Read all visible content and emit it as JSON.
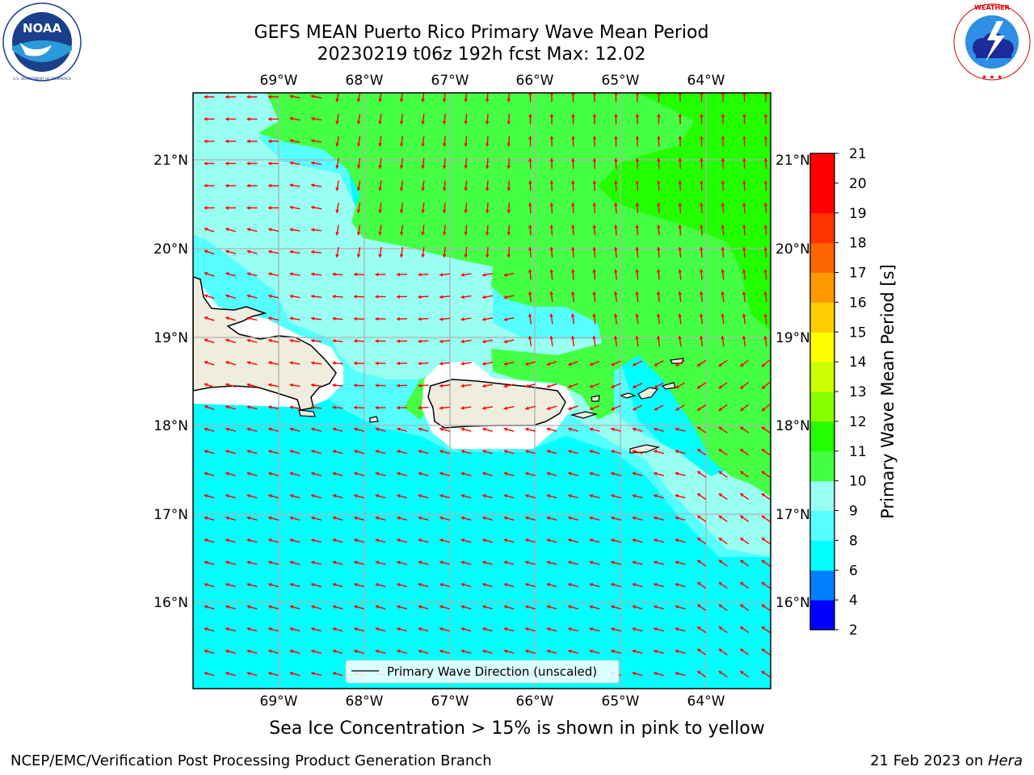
{
  "header": {
    "title": "GEFS MEAN Puerto Rico Primary Wave Mean Period",
    "subtitle": "20230219 t06z 192h fcst   Max: 12.02"
  },
  "logos": {
    "left": {
      "name": "NOAA",
      "ring_text": "NATIONAL OCEANIC AND ATMOSPHERIC ADMINISTRATION · U.S. DEPARTMENT OF COMMERCE"
    },
    "right": {
      "ring_text": "NATIONAL WEATHER SERVICE"
    }
  },
  "map": {
    "lon_ticks": [
      "69°W",
      "68°W",
      "67°W",
      "66°W",
      "65°W",
      "64°W"
    ],
    "lat_ticks": [
      "21°N",
      "20°N",
      "19°N",
      "18°N",
      "17°N",
      "16°N"
    ],
    "legend": "Primary Wave Direction (unscaled)",
    "arrow_color": "#ff0000"
  },
  "colorbar": {
    "label": "Primary Wave Mean Period [s]",
    "ticks": [
      "2",
      "4",
      "6",
      "8",
      "9",
      "10",
      "11",
      "12",
      "13",
      "14",
      "15",
      "16",
      "17",
      "18",
      "19",
      "20",
      "21"
    ],
    "colors": [
      "#0000ff",
      "#0080ff",
      "#00ffff",
      "#55ffff",
      "#99fff0",
      "#44ff44",
      "#22ff00",
      "#88ff00",
      "#ccff00",
      "#ffff00",
      "#ffcc00",
      "#ff9900",
      "#ff6600",
      "#ff3300",
      "#ff0000"
    ]
  },
  "notes": {
    "sea_ice": "Sea Ice Concentration > 15% is shown in pink to yellow",
    "footer_left": "NCEP/EMC/Verification Post Processing Product Generation Branch",
    "footer_right_prefix": "21 Feb 2023 on ",
    "footer_right_machine": "Hera"
  }
}
